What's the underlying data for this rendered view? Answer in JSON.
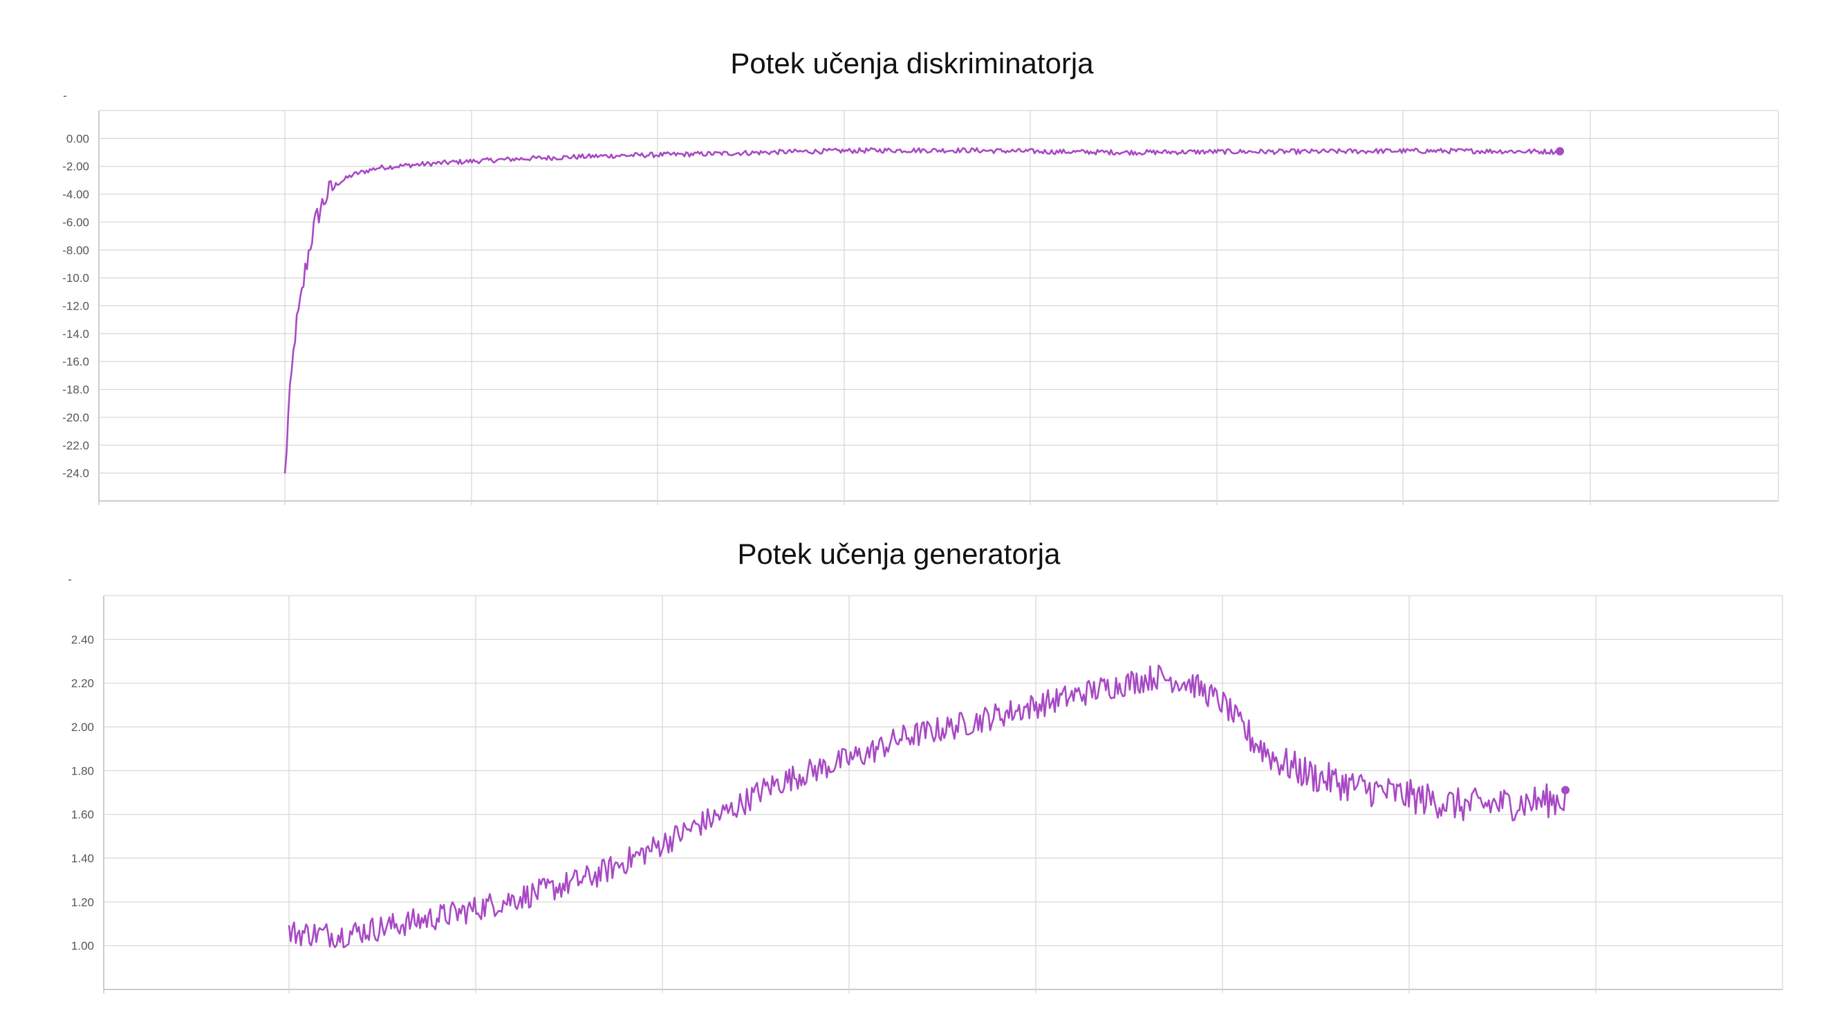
{
  "colors": {
    "series": "#a849c4",
    "grid": "#d6d6d6",
    "axis": "#bcbcbc",
    "text": "#555555"
  },
  "chart_data": [
    {
      "type": "line",
      "title": "Potek učenja diskriminatorja",
      "corner_label": "-",
      "xlabel": "",
      "ylabel": "",
      "ylim": [
        -26,
        2
      ],
      "y_ticks": [
        "0.00",
        "-2.00",
        "-4.00",
        "-6.00",
        "-8.00",
        "-10.0",
        "-12.0",
        "-14.0",
        "-16.0",
        "-18.0",
        "-20.0",
        "-22.0",
        "-24.0"
      ],
      "y_tick_values": [
        0,
        -2,
        -4,
        -6,
        -8,
        -10,
        -12,
        -14,
        -16,
        -18,
        -20,
        -22,
        -24
      ],
      "x_tick_labels": [],
      "grid": true,
      "series": [
        {
          "points": 750,
          "x_range": [
            0,
            750
          ],
          "anchors": [
            [
              0,
              -24.3
            ],
            [
              2,
              -20
            ],
            [
              4,
              -17
            ],
            [
              6,
              -14
            ],
            [
              9,
              -12
            ],
            [
              12,
              -9.5
            ],
            [
              15,
              -7.5
            ],
            [
              18,
              -6
            ],
            [
              21,
              -5
            ],
            [
              25,
              -4
            ],
            [
              30,
              -3.3
            ],
            [
              40,
              -2.6
            ],
            [
              55,
              -2.1
            ],
            [
              75,
              -1.9
            ],
            [
              100,
              -1.7
            ],
            [
              140,
              -1.45
            ],
            [
              190,
              -1.25
            ],
            [
              250,
              -1.1
            ],
            [
              300,
              -0.95
            ],
            [
              350,
              -0.85
            ],
            [
              400,
              -0.85
            ],
            [
              450,
              -0.95
            ],
            [
              500,
              -1.0
            ],
            [
              550,
              -0.95
            ],
            [
              600,
              -0.95
            ],
            [
              650,
              -0.9
            ],
            [
              700,
              -0.9
            ],
            [
              750,
              -0.95
            ]
          ],
          "noise": [
            0.45,
            0.18
          ],
          "end_marker": true
        }
      ]
    },
    {
      "type": "line",
      "title": "Potek učenja generatorja",
      "corner_label": "-",
      "xlabel": "",
      "ylabel": "",
      "ylim": [
        0.8,
        2.6
      ],
      "y_ticks": [
        "2.40",
        "2.20",
        "2.00",
        "1.80",
        "1.60",
        "1.40",
        "1.20",
        "1.00"
      ],
      "y_tick_values": [
        2.4,
        2.2,
        2.0,
        1.8,
        1.6,
        1.4,
        1.2,
        1.0
      ],
      "x_tick_labels": [],
      "grid": true,
      "series": [
        {
          "points": 750,
          "x_range": [
            0,
            750
          ],
          "anchors": [
            [
              0,
              1.06
            ],
            [
              30,
              1.05
            ],
            [
              60,
              1.09
            ],
            [
              80,
              1.12
            ],
            [
              100,
              1.15
            ],
            [
              120,
              1.19
            ],
            [
              150,
              1.25
            ],
            [
              180,
              1.32
            ],
            [
              210,
              1.43
            ],
            [
              240,
              1.55
            ],
            [
              260,
              1.62
            ],
            [
              280,
              1.72
            ],
            [
              300,
              1.78
            ],
            [
              320,
              1.83
            ],
            [
              340,
              1.88
            ],
            [
              360,
              1.95
            ],
            [
              390,
              2.0
            ],
            [
              420,
              2.06
            ],
            [
              450,
              2.12
            ],
            [
              480,
              2.18
            ],
            [
              510,
              2.23
            ],
            [
              530,
              2.2
            ],
            [
              550,
              2.1
            ],
            [
              565,
              1.95
            ],
            [
              580,
              1.85
            ],
            [
              600,
              1.78
            ],
            [
              630,
              1.72
            ],
            [
              660,
              1.68
            ],
            [
              690,
              1.64
            ],
            [
              720,
              1.65
            ],
            [
              750,
              1.67
            ]
          ],
          "noise": [
            0.045,
            0.06
          ],
          "end_marker": true
        }
      ]
    }
  ]
}
